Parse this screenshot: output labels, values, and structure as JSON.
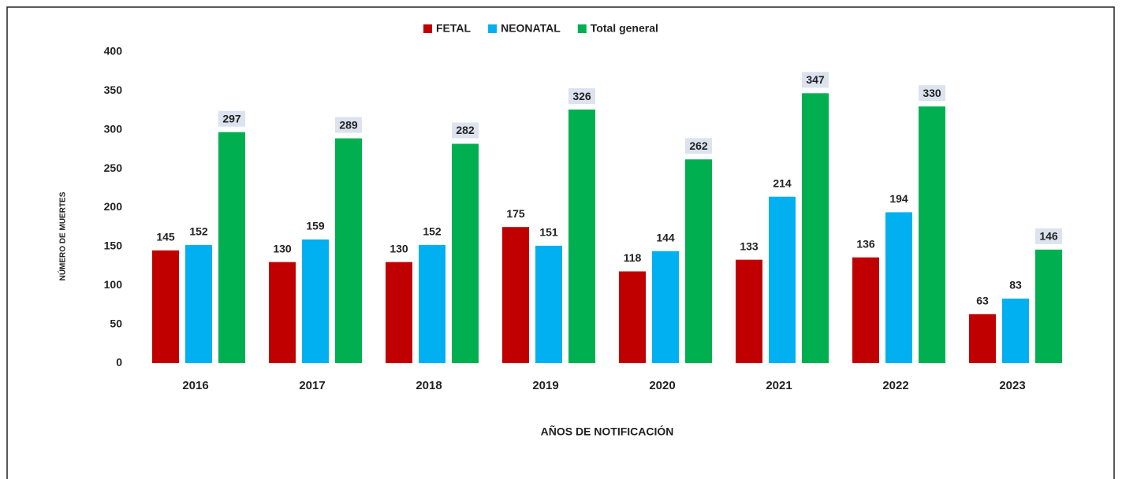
{
  "chart_data": {
    "type": "bar",
    "categories": [
      "2016",
      "2017",
      "2018",
      "2019",
      "2020",
      "2021",
      "2022",
      "2023"
    ],
    "series": [
      {
        "name": "FETAL",
        "color": "#c00000",
        "values": [
          145,
          130,
          130,
          175,
          118,
          133,
          136,
          63
        ]
      },
      {
        "name": "NEONATAL",
        "color": "#00b0f0",
        "values": [
          152,
          159,
          152,
          151,
          144,
          214,
          194,
          83
        ]
      },
      {
        "name": "Total general",
        "color": "#00b050",
        "label_background": "#dce3ef",
        "values": [
          297,
          289,
          282,
          326,
          262,
          347,
          330,
          146
        ]
      }
    ],
    "ylim": [
      0,
      400
    ],
    "yticks": [
      0,
      50,
      100,
      150,
      200,
      250,
      300,
      350,
      400
    ],
    "x_label": "AÑOS DE NOTIFICACIÓN",
    "y_label": "NÚMERO DE MUERTES",
    "legend": "top",
    "grid": false
  }
}
